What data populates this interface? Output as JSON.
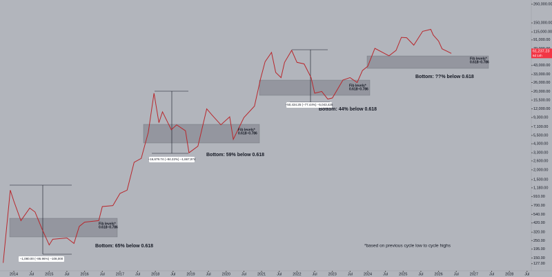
{
  "chart_data": {
    "type": "line",
    "log_y": true,
    "color": "#b8262b",
    "xlim": [
      2013.61,
      2028.62
    ],
    "ylim": [
      103,
      294000
    ],
    "xticks": [
      {
        "value": 2014,
        "label": "2014"
      },
      {
        "value": 2014.5,
        "label": "Jul"
      },
      {
        "value": 2015,
        "label": "2015"
      },
      {
        "value": 2015.5,
        "label": "Jul"
      },
      {
        "value": 2016,
        "label": "2016"
      },
      {
        "value": 2016.5,
        "label": "Jul"
      },
      {
        "value": 2017,
        "label": "2017"
      },
      {
        "value": 2017.5,
        "label": "Jul"
      },
      {
        "value": 2018,
        "label": "2018"
      },
      {
        "value": 2018.5,
        "label": "Jul"
      },
      {
        "value": 2019,
        "label": "2019"
      },
      {
        "value": 2019.5,
        "label": "Jul"
      },
      {
        "value": 2020,
        "label": "2020"
      },
      {
        "value": 2020.5,
        "label": "Jul"
      },
      {
        "value": 2021,
        "label": "2021"
      },
      {
        "value": 2021.5,
        "label": "Jul"
      },
      {
        "value": 2022,
        "label": "2022"
      },
      {
        "value": 2022.5,
        "label": "Jul"
      },
      {
        "value": 2023,
        "label": "2023"
      },
      {
        "value": 2023.5,
        "label": "Jul"
      },
      {
        "value": 2024,
        "label": "2024"
      },
      {
        "value": 2024.5,
        "label": "Jul"
      },
      {
        "value": 2025,
        "label": "2025"
      },
      {
        "value": 2025.5,
        "label": "Jul"
      },
      {
        "value": 2026,
        "label": "2026"
      },
      {
        "value": 2026.5,
        "label": "Jul"
      },
      {
        "value": 2027,
        "label": "2027"
      },
      {
        "value": 2027.5,
        "label": "Jul"
      },
      {
        "value": 2028,
        "label": "2028"
      },
      {
        "value": 2028.5,
        "label": "Jul"
      }
    ],
    "yticks": [
      {
        "value": 260000,
        "label": "260,000.00"
      },
      {
        "value": 150000,
        "label": "150,000.00"
      },
      {
        "value": 115000,
        "label": "115,000.00"
      },
      {
        "value": 91000,
        "label": "91,000.00"
      },
      {
        "value": 70000,
        "label": "70,000.00"
      },
      {
        "value": 43000,
        "label": "43,000.00"
      },
      {
        "value": 33000,
        "label": "33,000.00"
      },
      {
        "value": 26000,
        "label": "26,000.00"
      },
      {
        "value": 20000,
        "label": "20,000.00"
      },
      {
        "value": 15500,
        "label": "15,500.00"
      },
      {
        "value": 12000,
        "label": "12,000.00"
      },
      {
        "value": 9300,
        "label": "9,300.00"
      },
      {
        "value": 7100,
        "label": "7,100.00"
      },
      {
        "value": 5500,
        "label": "5,500.00"
      },
      {
        "value": 4300,
        "label": "4,300.00"
      },
      {
        "value": 3300,
        "label": "3,300.00"
      },
      {
        "value": 2600,
        "label": "2,600.00"
      },
      {
        "value": 2000,
        "label": "2,000.00"
      },
      {
        "value": 1500,
        "label": "1,500.00"
      },
      {
        "value": 1180,
        "label": "1,180.00"
      },
      {
        "value": 910,
        "label": "910.00"
      },
      {
        "value": 700,
        "label": "700.00"
      },
      {
        "value": 540,
        "label": "540.00"
      },
      {
        "value": 420,
        "label": "420.00"
      },
      {
        "value": 320,
        "label": "320.00"
      },
      {
        "value": 250,
        "label": "250.00"
      },
      {
        "value": 195,
        "label": "195.00"
      },
      {
        "value": 150,
        "label": "150.00"
      },
      {
        "value": 127,
        "label": "127.00"
      }
    ],
    "x": [
      2013.7,
      2013.9,
      2014.0,
      2014.2,
      2014.45,
      2014.6,
      2014.8,
      2015.0,
      2015.1,
      2015.5,
      2015.7,
      2015.85,
      2016.0,
      2016.4,
      2016.5,
      2016.8,
      2017.0,
      2017.2,
      2017.4,
      2017.6,
      2017.8,
      2017.96,
      2018.1,
      2018.2,
      2018.45,
      2018.6,
      2018.85,
      2018.95,
      2019.2,
      2019.45,
      2019.6,
      2019.85,
      2020.1,
      2020.2,
      2020.5,
      2020.8,
      2020.97,
      2021.1,
      2021.28,
      2021.4,
      2021.55,
      2021.65,
      2021.85,
      2022.0,
      2022.2,
      2022.4,
      2022.5,
      2022.7,
      2022.87,
      2023.0,
      2023.3,
      2023.5,
      2023.7,
      2023.85,
      2024.0,
      2024.2,
      2024.6,
      2024.8,
      2024.95,
      2025.1,
      2025.3,
      2025.55,
      2025.78,
      2025.85,
      2026.0,
      2026.1,
      2026.25,
      2026.36
    ],
    "values": [
      130,
      1100,
      800,
      450,
      650,
      580,
      350,
      220,
      260,
      270,
      230,
      380,
      430,
      450,
      680,
      700,
      1000,
      1100,
      2500,
      2800,
      6000,
      19000,
      8000,
      11000,
      6500,
      7500,
      6300,
      3300,
      4000,
      12000,
      10000,
      7500,
      9500,
      4900,
      9300,
      13000,
      29000,
      48000,
      63000,
      35000,
      30000,
      47000,
      67000,
      47000,
      45000,
      30000,
      19000,
      20000,
      16000,
      16500,
      28000,
      30000,
      26000,
      37000,
      42000,
      71000,
      57000,
      67000,
      98000,
      97000,
      78000,
      117000,
      124000,
      105000,
      88000,
      70000,
      65000,
      61237.23
    ],
    "price_label": "61,237.23",
    "countdown": "6d 14h",
    "annotations": [
      "Fib levels*",
      "0.618–0.786",
      "Fib levels*",
      "0.618–0.786",
      "Fib levels*",
      "0.618–0.786",
      "Fib levels*",
      "0.618–0.786",
      "Bottom: 65% below 0.618",
      "Bottom: 59% below 0.618",
      "Bottom: 44% below 0.618",
      "Bottom: ??% below 0.618",
      "−1,080.00 (−86.96%) −108,000",
      "−16,679.74 (−84.22%) −1,667,974",
      "−50,434.25 (−77.44%) −5,043,425",
      "*based on previous cycle low to cycle highs"
    ]
  }
}
